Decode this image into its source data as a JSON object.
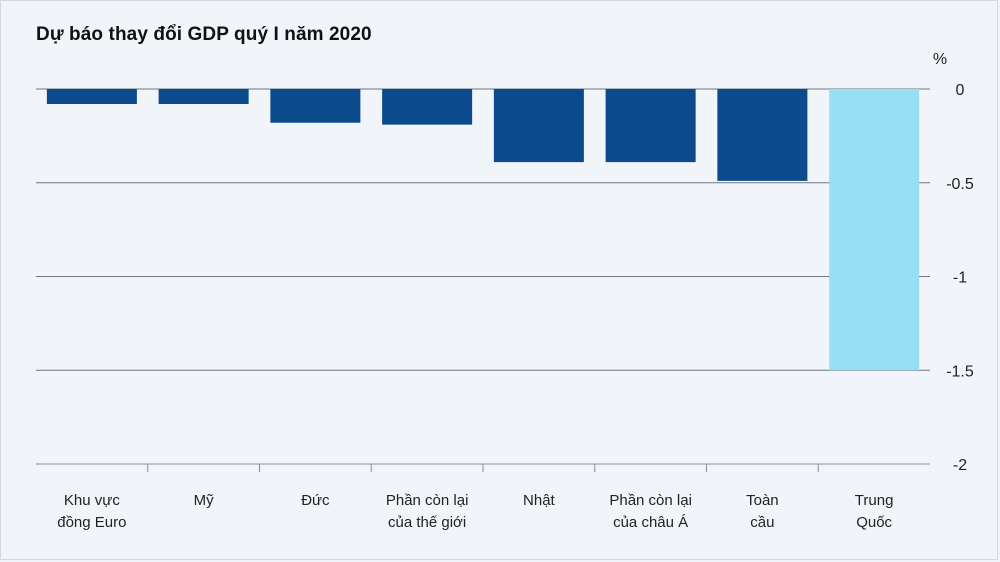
{
  "chart_data": {
    "type": "bar",
    "title": "Dự báo thay đổi GDP quý I năm 2020",
    "unit_label": "%",
    "categories": [
      [
        "Khu vực",
        "đồng Euro"
      ],
      [
        "Mỹ"
      ],
      [
        "Đức"
      ],
      [
        "Phần còn lại",
        "của thế giới"
      ],
      [
        "Nhật"
      ],
      [
        "Phần còn lại",
        "của châu Á"
      ],
      [
        "Toàn",
        "cầu"
      ],
      [
        "Trung",
        "Quốc"
      ]
    ],
    "values": [
      -0.08,
      -0.08,
      -0.18,
      -0.19,
      -0.39,
      -0.39,
      -0.49,
      -1.5
    ],
    "bar_colors": [
      "#0b4a8b",
      "#0b4a8b",
      "#0b4a8b",
      "#0b4a8b",
      "#0b4a8b",
      "#0b4a8b",
      "#0b4a8b",
      "#97dff3"
    ],
    "yticks": [
      0,
      -0.5,
      -1,
      -1.5,
      -2
    ],
    "ytick_labels": [
      "0",
      "-0.5",
      "-1",
      "-1.5",
      "-2"
    ],
    "ylim": [
      -2,
      0
    ],
    "grid": true,
    "axis_position": "right"
  }
}
